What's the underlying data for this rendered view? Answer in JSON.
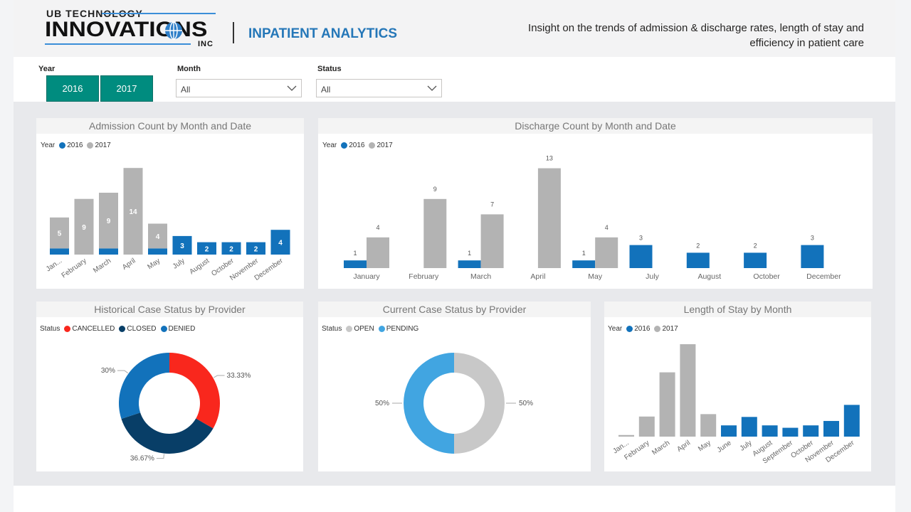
{
  "header": {
    "logo": {
      "line1": "UB TECHNOLOGY",
      "line2": "INNOVATIONS",
      "line3": "INC"
    },
    "title": "INPATIENT ANALYTICS",
    "description_line1": "Insight on the trends of admission & discharge rates, length of stay and",
    "description_line2": "efficiency in patient care"
  },
  "filters": {
    "year": {
      "label": "Year",
      "options": [
        "2016",
        "2017"
      ]
    },
    "month": {
      "label": "Month",
      "value": "All"
    },
    "status": {
      "label": "Status",
      "value": "All"
    }
  },
  "colors": {
    "c2016": "#1272bb",
    "c2017": "#b3b3b3",
    "cancelled": "#f9271d",
    "closed": "#083e67",
    "denied": "#1272bb",
    "open": "#c8c8c8",
    "pending": "#41a5e1",
    "year_button": "#008c7f",
    "accent_title": "#2577b8"
  },
  "panels": {
    "admission": {
      "title": "Admission Count by Month and Date",
      "legend_title": "Year",
      "series": [
        "2016",
        "2017"
      ]
    },
    "discharge": {
      "title": "Discharge Count by Month and Date",
      "legend_title": "Year",
      "series": [
        "2016",
        "2017"
      ]
    },
    "historical": {
      "title": "Historical Case Status by Provider",
      "legend_title": "Status",
      "series": [
        "CANCELLED",
        "CLOSED",
        "DENIED"
      ]
    },
    "current": {
      "title": "Current Case Status by Provider",
      "legend_title": "Status",
      "series": [
        "OPEN",
        "PENDING"
      ]
    },
    "los": {
      "title": "Length of Stay by Month",
      "legend_title": "Year",
      "series": [
        "2016",
        "2017"
      ]
    }
  },
  "chart_data": [
    {
      "id": "admission",
      "type": "bar",
      "stacked": true,
      "categories": [
        "January",
        "February",
        "March",
        "April",
        "May",
        "July",
        "August",
        "October",
        "November",
        "December"
      ],
      "category_labels": [
        "Jan...",
        "February",
        "March",
        "April",
        "May",
        "July",
        "August",
        "October",
        "November",
        "December"
      ],
      "series": [
        {
          "name": "2016",
          "values": [
            1,
            0,
            1,
            0,
            1,
            3,
            2,
            2,
            2,
            4
          ]
        },
        {
          "name": "2017",
          "values": [
            5,
            9,
            9,
            14,
            4,
            0,
            0,
            0,
            0,
            0
          ]
        }
      ],
      "data_labels": [
        "5",
        "9",
        "9",
        "14",
        "4",
        "3",
        "2",
        "2",
        "2",
        "4"
      ],
      "xlabel": "",
      "ylabel": ""
    },
    {
      "id": "discharge",
      "type": "bar",
      "stacked": false,
      "categories": [
        "January",
        "February",
        "March",
        "April",
        "May",
        "July",
        "August",
        "October",
        "December"
      ],
      "series": [
        {
          "name": "2016",
          "values": [
            1,
            null,
            1,
            null,
            1,
            3,
            2,
            2,
            3
          ]
        },
        {
          "name": "2017",
          "values": [
            4,
            9,
            7,
            13,
            4,
            null,
            null,
            null,
            null
          ]
        }
      ],
      "xlabel": "",
      "ylabel": ""
    },
    {
      "id": "historical",
      "type": "pie",
      "donut": true,
      "labels": [
        "CANCELLED",
        "CLOSED",
        "DENIED"
      ],
      "values": [
        33.33,
        36.67,
        30
      ],
      "value_labels": [
        "33.33%",
        "36.67%",
        "30%"
      ]
    },
    {
      "id": "current",
      "type": "pie",
      "donut": true,
      "labels": [
        "OPEN",
        "PENDING"
      ],
      "values": [
        50,
        50
      ],
      "value_labels": [
        "50%",
        "50%"
      ]
    },
    {
      "id": "los",
      "type": "bar",
      "stacked": false,
      "categories": [
        "January",
        "February",
        "March",
        "April",
        "May",
        "June",
        "July",
        "August",
        "September",
        "October",
        "November",
        "December"
      ],
      "category_labels": [
        "Jan...",
        "February",
        "March",
        "April",
        "May",
        "June",
        "July",
        "August",
        "September",
        "October",
        "November",
        "December"
      ],
      "series": [
        {
          "name": "2016",
          "values": [
            null,
            null,
            null,
            null,
            null,
            2.8,
            4.9,
            2.8,
            2.2,
            2.8,
            3.9,
            7.9
          ]
        },
        {
          "name": "2017",
          "values": [
            0.4,
            5.0,
            16.0,
            23.0,
            5.6,
            null,
            null,
            null,
            null,
            null,
            null,
            null
          ]
        }
      ],
      "xlabel": "",
      "ylabel": ""
    }
  ]
}
